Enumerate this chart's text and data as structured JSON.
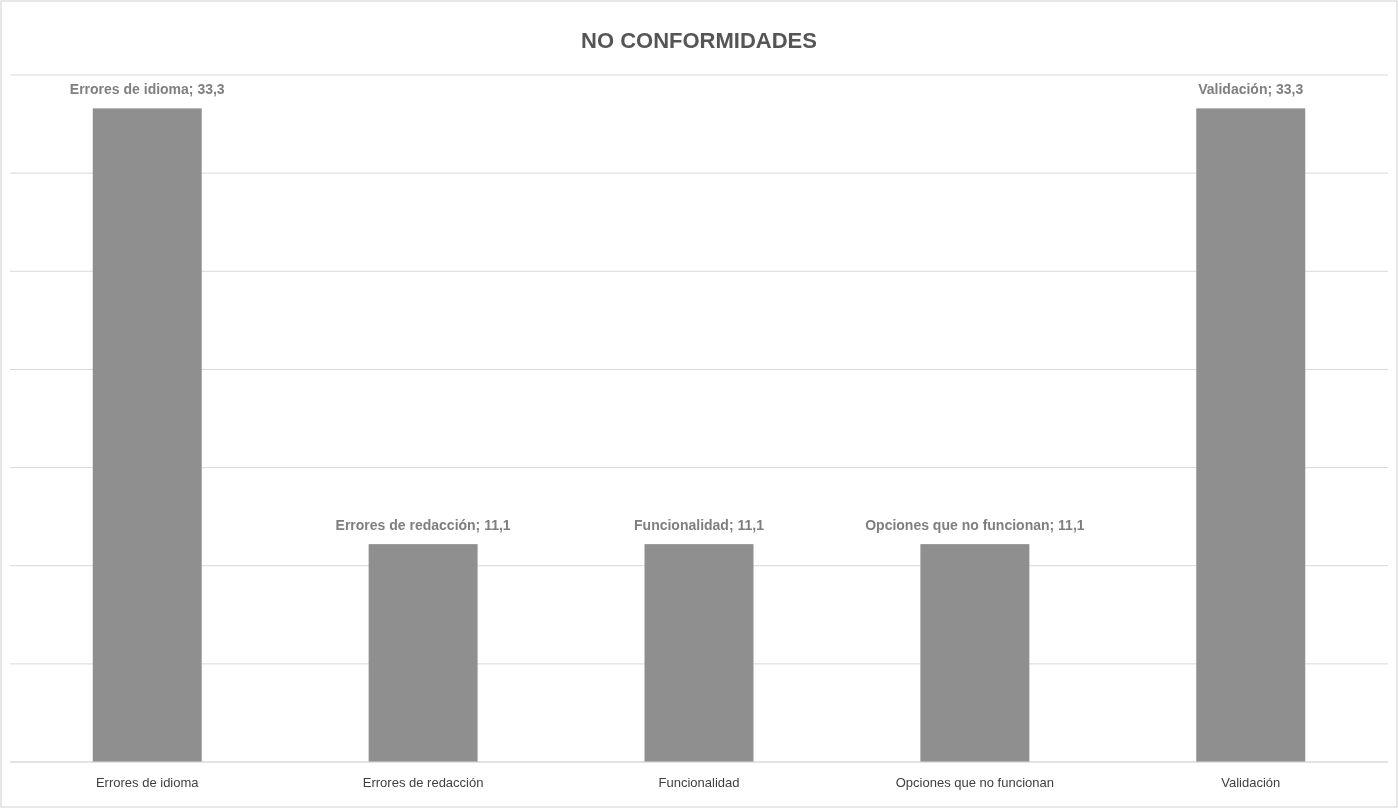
{
  "chart_data": {
    "type": "bar",
    "title": "NO CONFORMIDADES",
    "categories": [
      "Errores de idioma",
      "Errores de redacción",
      "Funcionalidad",
      "Opciones que no funcionan",
      "Validación"
    ],
    "values": [
      33.3,
      11.1,
      11.1,
      11.1,
      33.3
    ],
    "value_labels": [
      "Errores de idioma; 33,3",
      "Errores de redacción; 11,1",
      "Funcionalidad; 11,1",
      "Opciones que no funcionan; 11,1",
      "Validación; 33,3"
    ],
    "color": "#8f8f8f",
    "ylim": [
      0,
      35
    ],
    "yticks": [
      {
        "value": 0,
        "label": null
      },
      {
        "value": 5,
        "label": null
      },
      {
        "value": 10,
        "label": null
      },
      {
        "value": 15,
        "label": null
      },
      {
        "value": 20,
        "label": null
      },
      {
        "value": 25,
        "label": null
      },
      {
        "value": 30,
        "label": null
      },
      {
        "value": 35,
        "label": null
      }
    ],
    "grid": "y",
    "tick_labels": "x"
  }
}
